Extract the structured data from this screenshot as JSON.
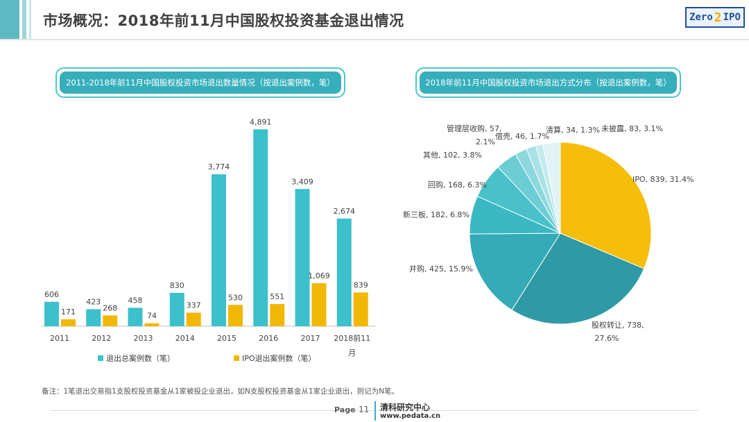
{
  "header": {
    "title": "市场概况：2018年前11月中国股权投资基金退出情况",
    "logo_text_left": "Zero",
    "logo_text_mid": "2",
    "logo_text_right": "IPO"
  },
  "colors": {
    "total": "#3cc0cb",
    "ipo": "#f2b705",
    "accent": "#37aebb"
  },
  "left_panel": {
    "title": "2011-2018年前11月中国股权投资市场退出数量情况（按退出案例数，笔）"
  },
  "right_panel": {
    "title": "2018年前11月中国股权投资市场退出方式分布（按退出案例数，笔）"
  },
  "legend": {
    "total": "退出总案例数（笔）",
    "ipo": "IPO退出案例数（笔）"
  },
  "chart_data": [
    {
      "type": "bar",
      "categories": [
        "2011",
        "2012",
        "2013",
        "2014",
        "2015",
        "2016",
        "2017",
        "2018前11月"
      ],
      "series": [
        {
          "name": "退出总案例数（笔）",
          "values": [
            606,
            423,
            458,
            830,
            3774,
            4891,
            3409,
            2674
          ],
          "labels": [
            "606",
            "423",
            "458",
            "830",
            "3,774",
            "4,891",
            "3,409",
            "2,674"
          ],
          "color": "#3cc0cb"
        },
        {
          "name": "IPO退出案例数（笔）",
          "values": [
            171,
            268,
            74,
            337,
            530,
            551,
            1069,
            839
          ],
          "labels": [
            "171",
            "268",
            "74",
            "337",
            "530",
            "551",
            "1,069",
            "839"
          ],
          "color": "#f2b705"
        }
      ],
      "ylim": [
        0,
        5000
      ],
      "grid": false,
      "legend_position": "bottom"
    },
    {
      "type": "pie",
      "slices": [
        {
          "label": "IPO",
          "value": 839,
          "percent": "31.4%",
          "text": "IPO, 839, 31.4%",
          "color": "#f6bd0a"
        },
        {
          "label": "股权转让",
          "value": 738,
          "percent": "27.6%",
          "text": "股权转让, 738,",
          "text2": "27.6%",
          "color": "#2f9aa5"
        },
        {
          "label": "并购",
          "value": 425,
          "percent": "15.9%",
          "text": "并购, 425, 15.9%",
          "color": "#34abb7"
        },
        {
          "label": "新三板",
          "value": 182,
          "percent": "6.8%",
          "text": "新三板, 182, 6.8%",
          "color": "#3bb8c3"
        },
        {
          "label": "回购",
          "value": 168,
          "percent": "6.3%",
          "text": "回购, 168, 6.3%",
          "color": "#49c0ca"
        },
        {
          "label": "其他",
          "value": 102,
          "percent": "3.8%",
          "text": "其他, 102, 3.8%",
          "color": "#6ccdd5"
        },
        {
          "label": "管理层收购",
          "value": 57,
          "percent": "2.1%",
          "text": "管理层收购, 57,",
          "text2": "2.1%",
          "color": "#8cd8de"
        },
        {
          "label": "借壳",
          "value": 46,
          "percent": "1.7%",
          "text": "借壳, 46, 1.7%",
          "color": "#a8e1e6"
        },
        {
          "label": "清算",
          "value": 34,
          "percent": "1.3%",
          "text": "清算, 34, 1.3%",
          "color": "#c3eaed"
        },
        {
          "label": "未披露",
          "value": 83,
          "percent": "3.1%",
          "text": "未披露, 83, 3.1%",
          "color": "#e0f3f5"
        }
      ]
    }
  ],
  "note": "备注：1笔退出交易指1支股权投资基金从1家被投企业退出，如N支股权投资基金从1家企业退出，则记为N笔。",
  "footer": {
    "page_label": "Page",
    "page_number": "11",
    "org_name": "清科研究中心",
    "website": "www.pedata.cn"
  }
}
